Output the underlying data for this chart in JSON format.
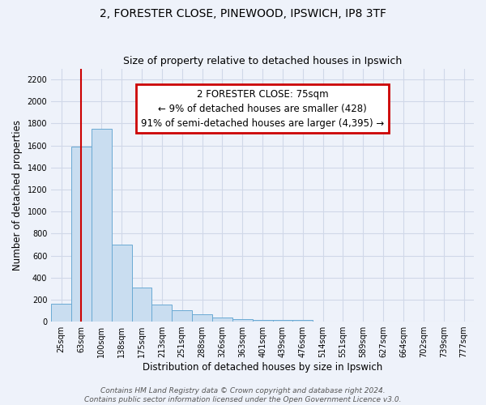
{
  "title": "2, FORESTER CLOSE, PINEWOOD, IPSWICH, IP8 3TF",
  "subtitle": "Size of property relative to detached houses in Ipswich",
  "xlabel": "Distribution of detached houses by size in Ipswich",
  "ylabel": "Number of detached properties",
  "bar_labels": [
    "25sqm",
    "63sqm",
    "100sqm",
    "138sqm",
    "175sqm",
    "213sqm",
    "251sqm",
    "288sqm",
    "326sqm",
    "363sqm",
    "401sqm",
    "439sqm",
    "476sqm",
    "514sqm",
    "551sqm",
    "589sqm",
    "627sqm",
    "664sqm",
    "702sqm",
    "739sqm",
    "777sqm"
  ],
  "bar_values": [
    160,
    1590,
    1750,
    700,
    310,
    155,
    105,
    65,
    35,
    25,
    18,
    15,
    12,
    0,
    0,
    0,
    0,
    0,
    0,
    0,
    0
  ],
  "bar_color": "#c9ddf0",
  "bar_edge_color": "#6aaad4",
  "vline_x_idx": 1,
  "vline_color": "#cc0000",
  "annotation_title": "2 FORESTER CLOSE: 75sqm",
  "annotation_line1": "← 9% of detached houses are smaller (428)",
  "annotation_line2": "91% of semi-detached houses are larger (4,395) →",
  "annotation_box_color": "#ffffff",
  "annotation_box_edge": "#cc0000",
  "ylim": [
    0,
    2300
  ],
  "yticks": [
    0,
    200,
    400,
    600,
    800,
    1000,
    1200,
    1400,
    1600,
    1800,
    2000,
    2200
  ],
  "footer_line1": "Contains HM Land Registry data © Crown copyright and database right 2024.",
  "footer_line2": "Contains public sector information licensed under the Open Government Licence v3.0.",
  "background_color": "#eef2fa",
  "plot_bg_color": "#eef2fa",
  "grid_color": "#d0d8e8",
  "title_fontsize": 10,
  "subtitle_fontsize": 9,
  "xlabel_fontsize": 8.5,
  "ylabel_fontsize": 8.5,
  "tick_fontsize": 7,
  "annotation_fontsize": 8.5,
  "footer_fontsize": 6.5
}
